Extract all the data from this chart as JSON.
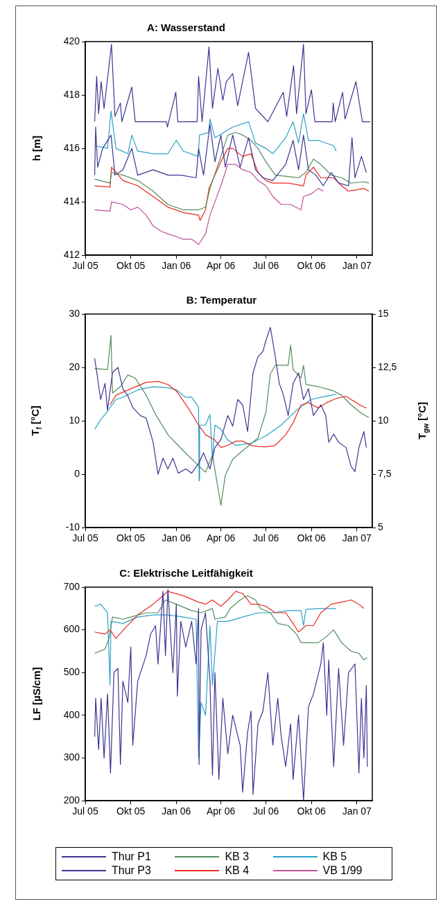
{
  "chart_data": [
    {
      "type": "line",
      "title": "A: Wasserstand",
      "ylabel": "h [m]",
      "xlim": [
        "2005-07-01",
        "2007-02-01"
      ],
      "xticks": [
        {
          "value": "2005-07-01",
          "label": "Jul 05"
        },
        {
          "value": "2005-10-01",
          "label": "Okt 05"
        },
        {
          "value": "2006-01-01",
          "label": "Jan 06"
        },
        {
          "value": "2006-04-01",
          "label": "Apr 06"
        },
        {
          "value": "2006-07-01",
          "label": "Jul 06"
        },
        {
          "value": "2006-10-01",
          "label": "Okt 06"
        },
        {
          "value": "2007-01-01",
          "label": "Jan 07"
        }
      ],
      "ylim": [
        412,
        420
      ],
      "yticks": [
        412,
        414,
        416,
        418,
        420
      ],
      "grid": false,
      "legend": "bottom",
      "marker": "none",
      "line_style": "solid",
      "series": [
        {
          "name": "Thur P1",
          "color": "#3a3492",
          "x": [
            "2005-07-20",
            "2005-07-24",
            "2005-07-28",
            "2005-08-02",
            "2005-08-08",
            "2005-08-23",
            "2005-08-30",
            "2005-09-10",
            "2005-09-13",
            "2005-10-03",
            "2005-10-10",
            "2005-12-12",
            "2005-12-14",
            "2005-12-31",
            "2006-01-04",
            "2006-02-12",
            "2006-02-15",
            "2006-02-22",
            "2006-03-08",
            "2006-03-15",
            "2006-03-26",
            "2006-04-05",
            "2006-04-12",
            "2006-04-25",
            "2006-05-05",
            "2006-05-27",
            "2006-06-10",
            "2006-06-20",
            "2006-07-05",
            "2006-08-05",
            "2006-08-12",
            "2006-08-26",
            "2006-09-01",
            "2006-09-15",
            "2006-09-20",
            "2006-10-01",
            "2006-10-08",
            "2006-11-12",
            "2006-11-14",
            "2006-11-18",
            "2006-12-03",
            "2006-12-08",
            "2006-12-30",
            "2007-01-05",
            "2007-01-12",
            "2007-01-28"
          ],
          "values": [
            417.0,
            418.7,
            417.3,
            418.5,
            417.5,
            419.9,
            417.2,
            417.7,
            417.0,
            418.3,
            417.0,
            417.0,
            416.8,
            418.1,
            417.0,
            417.0,
            418.7,
            417.0,
            419.8,
            417.5,
            419.0,
            417.8,
            418.5,
            418.8,
            417.6,
            419.6,
            417.5,
            417.3,
            417.0,
            418.1,
            417.2,
            419.1,
            417.3,
            419.9,
            417.3,
            418.2,
            417.0,
            417.0,
            417.7,
            417.0,
            418.1,
            417.1,
            418.5,
            417.8,
            417.0,
            417.0
          ]
        },
        {
          "name": "Thur P3",
          "color": "#3a3492",
          "x": [
            "2005-07-20",
            "2005-07-22",
            "2005-07-26",
            "2005-08-05",
            "2005-08-22",
            "2005-08-30",
            "2005-09-15",
            "2005-10-03",
            "2005-10-15",
            "2005-11-15",
            "2005-12-15",
            "2006-01-10",
            "2006-02-10",
            "2006-02-15",
            "2006-02-25",
            "2006-03-10",
            "2006-03-20",
            "2006-04-01",
            "2006-04-10",
            "2006-04-25",
            "2006-05-10",
            "2006-05-27",
            "2006-06-10",
            "2006-06-25",
            "2006-07-15",
            "2006-08-10",
            "2006-08-25",
            "2006-09-05",
            "2006-09-15",
            "2006-09-25",
            "2006-10-10",
            "2006-10-25",
            "2006-11-10",
            "2006-11-25",
            "2006-12-15",
            "2006-12-22",
            "2006-12-28",
            "2007-01-10",
            "2007-01-20"
          ],
          "values": [
            415.0,
            416.8,
            415.3,
            416.0,
            416.5,
            415.0,
            415.2,
            416.0,
            415.0,
            415.2,
            415.0,
            415.0,
            414.9,
            416.0,
            415.0,
            416.9,
            415.5,
            416.5,
            415.3,
            416.5,
            415.3,
            416.4,
            415.2,
            414.9,
            414.8,
            415.4,
            416.3,
            415.2,
            416.5,
            415.2,
            415.0,
            414.6,
            415.1,
            414.7,
            414.6,
            416.4,
            414.9,
            415.7,
            415.1
          ]
        },
        {
          "name": "KB 3",
          "color": "#4f8c5c",
          "x": [
            "2005-07-20",
            "2005-08-20",
            "2005-08-23",
            "2005-09-15",
            "2005-10-15",
            "2005-11-15",
            "2005-12-15",
            "2006-01-15",
            "2006-02-15",
            "2006-03-01",
            "2006-03-10",
            "2006-04-01",
            "2006-04-15",
            "2006-05-01",
            "2006-05-15",
            "2006-06-01",
            "2006-06-15",
            "2006-07-01",
            "2006-07-20",
            "2006-08-15",
            "2006-09-05",
            "2006-09-20",
            "2006-10-05",
            "2006-10-20",
            "2006-11-10",
            "2006-12-01",
            "2006-12-20",
            "2007-01-15",
            "2007-01-25"
          ],
          "values": [
            414.85,
            414.7,
            415.1,
            415.0,
            414.8,
            414.4,
            413.9,
            413.7,
            413.7,
            413.8,
            414.5,
            415.7,
            416.5,
            416.6,
            416.5,
            416.3,
            416.0,
            415.5,
            415.0,
            414.95,
            414.9,
            415.1,
            415.6,
            415.4,
            415.0,
            414.9,
            414.7,
            414.75,
            414.7
          ]
        },
        {
          "name": "KB 4",
          "color": "#e8281e",
          "x": [
            "2005-07-20",
            "2005-08-20",
            "2005-08-23",
            "2005-09-15",
            "2005-10-15",
            "2005-11-15",
            "2005-12-15",
            "2006-01-15",
            "2006-02-15",
            "2006-02-18",
            "2006-03-01",
            "2006-03-08",
            "2006-04-01",
            "2006-04-15",
            "2006-04-25",
            "2006-05-15",
            "2006-06-01",
            "2006-06-15",
            "2006-07-01",
            "2006-07-15",
            "2006-08-15",
            "2006-09-15",
            "2006-09-20",
            "2006-10-05",
            "2006-10-20",
            "2006-11-15",
            "2006-12-01",
            "2006-12-15",
            "2007-01-15",
            "2007-01-25"
          ],
          "values": [
            414.6,
            414.55,
            415.3,
            414.8,
            414.6,
            414.2,
            413.8,
            413.6,
            413.5,
            413.3,
            413.7,
            414.5,
            415.5,
            416.0,
            416.0,
            415.7,
            415.8,
            415.1,
            414.8,
            414.7,
            414.7,
            414.6,
            415.0,
            415.3,
            414.9,
            414.9,
            414.6,
            414.4,
            414.5,
            414.4
          ]
        },
        {
          "name": "KB 5",
          "color": "#2aa0c8",
          "x": [
            "2005-07-20",
            "2005-08-15",
            "2005-08-22",
            "2005-09-01",
            "2005-09-25",
            "2005-10-03",
            "2005-10-15",
            "2005-11-15",
            "2005-12-15",
            "2006-01-01",
            "2006-01-15",
            "2006-02-14",
            "2006-02-17",
            "2006-03-07",
            "2006-03-10",
            "2006-03-20",
            "2006-04-25",
            "2006-05-27",
            "2006-06-10",
            "2006-07-01",
            "2006-07-15",
            "2006-08-10",
            "2006-08-25",
            "2006-09-05",
            "2006-09-15",
            "2006-09-25",
            "2006-10-15",
            "2006-11-15",
            "2006-11-20"
          ],
          "values": [
            416.1,
            416.0,
            417.4,
            416.0,
            415.8,
            416.5,
            415.9,
            415.8,
            415.8,
            416.3,
            415.9,
            415.7,
            416.5,
            416.6,
            417.1,
            416.4,
            416.8,
            417.0,
            416.2,
            416.0,
            415.8,
            416.4,
            417.0,
            416.2,
            417.3,
            416.3,
            416.3,
            416.1,
            415.9
          ]
        },
        {
          "name": "VB 1/99",
          "color": "#c0509a",
          "x": [
            "2005-07-20",
            "2005-08-20",
            "2005-08-23",
            "2005-09-15",
            "2005-10-01",
            "2005-10-15",
            "2005-11-01",
            "2005-11-15",
            "2005-12-01",
            "2005-12-15",
            "2006-01-01",
            "2006-01-15",
            "2006-02-01",
            "2006-02-15",
            "2006-03-01",
            "2006-03-10",
            "2006-04-01",
            "2006-04-15",
            "2006-05-01",
            "2006-05-15",
            "2006-06-01",
            "2006-06-15",
            "2006-07-01",
            "2006-07-15",
            "2006-08-01",
            "2006-08-20",
            "2006-09-10",
            "2006-09-15",
            "2006-10-01",
            "2006-10-15",
            "2006-10-25"
          ],
          "values": [
            413.7,
            413.65,
            414.0,
            413.9,
            413.7,
            413.8,
            413.5,
            413.1,
            412.9,
            412.8,
            412.7,
            412.6,
            412.6,
            412.4,
            412.8,
            413.5,
            414.6,
            415.4,
            415.4,
            415.2,
            415.1,
            414.8,
            414.6,
            414.2,
            413.9,
            413.9,
            413.7,
            414.2,
            414.3,
            414.5,
            414.4
          ]
        }
      ]
    },
    {
      "type": "line",
      "title": "B: Temperatur",
      "ylabel": "T$_{f}$ [°C]",
      "y2label": "T$_{gw}$ [°C]",
      "xlim": [
        "2005-07-01",
        "2007-02-01"
      ],
      "xticks": [
        {
          "value": "2005-07-01",
          "label": "Jul 05"
        },
        {
          "value": "2005-10-01",
          "label": "Okt 05"
        },
        {
          "value": "2006-01-01",
          "label": "Jan 06"
        },
        {
          "value": "2006-04-01",
          "label": "Apr 06"
        },
        {
          "value": "2006-07-01",
          "label": "Jul 06"
        },
        {
          "value": "2006-10-01",
          "label": "Okt 06"
        },
        {
          "value": "2007-01-01",
          "label": "Jan 07"
        }
      ],
      "ylim": [
        -10,
        30
      ],
      "yticks": [
        -10,
        0,
        10,
        20,
        30
      ],
      "y2lim": [
        5,
        15
      ],
      "y2ticks": [
        5,
        {
          "value": 7.5,
          "label": "7,5"
        },
        10,
        {
          "value": 12.5,
          "label": "12,5"
        },
        15
      ],
      "grid": false,
      "legend": "bottom",
      "marker": "none",
      "line_style": "solid",
      "series": [
        {
          "name": "Thur P1",
          "color": "#3a3492",
          "x": [
            "2005-07-20",
            "2005-07-25",
            "2005-08-01",
            "2005-08-10",
            "2005-08-15",
            "2005-08-25",
            "2005-09-05",
            "2005-09-15",
            "2005-09-25",
            "2005-10-05",
            "2005-10-20",
            "2005-11-01",
            "2005-11-15",
            "2005-11-25",
            "2005-12-05",
            "2005-12-15",
            "2005-12-25",
            "2006-01-05",
            "2006-01-20",
            "2006-02-01",
            "2006-02-15",
            "2006-02-25",
            "2006-03-10",
            "2006-03-20",
            "2006-04-01",
            "2006-04-15",
            "2006-04-25",
            "2006-05-05",
            "2006-05-15",
            "2006-05-25",
            "2006-06-05",
            "2006-06-15",
            "2006-06-25",
            "2006-07-01",
            "2006-07-10",
            "2006-07-20",
            "2006-07-28",
            "2006-08-05",
            "2006-08-15",
            "2006-08-25",
            "2006-09-05",
            "2006-09-15",
            "2006-09-25",
            "2006-10-05",
            "2006-10-20",
            "2006-10-30",
            "2006-11-05",
            "2006-11-15",
            "2006-11-25",
            "2006-12-10",
            "2006-12-20",
            "2006-12-28",
            "2007-01-05",
            "2007-01-15",
            "2007-01-20"
          ],
          "values": [
            21.7,
            18.6,
            14,
            17,
            12,
            19,
            20,
            16,
            14.7,
            12.5,
            11,
            10.5,
            6,
            0,
            3,
            1,
            3,
            0.2,
            1,
            0.2,
            2,
            4,
            1,
            5,
            6.5,
            11,
            9,
            14,
            13,
            8,
            19,
            22,
            23,
            25,
            27.5,
            22,
            17,
            15,
            11,
            17,
            19,
            14,
            16,
            11,
            13,
            11,
            6,
            7.5,
            6,
            5,
            1.5,
            0.5,
            5,
            8,
            5
          ]
        },
        {
          "name": "KB 3",
          "color": "#4f8c5c",
          "axis": "y2",
          "x": [
            "2005-07-20",
            "2005-08-15",
            "2005-08-22",
            "2005-08-25",
            "2005-09-10",
            "2005-09-25",
            "2005-10-10",
            "2005-11-01",
            "2005-11-20",
            "2005-12-15",
            "2006-01-15",
            "2006-02-15",
            "2006-03-01",
            "2006-03-15",
            "2006-04-01",
            "2006-04-10",
            "2006-04-25",
            "2006-05-15",
            "2006-06-15",
            "2006-07-01",
            "2006-07-10",
            "2006-07-20",
            "2006-08-15",
            "2006-08-20",
            "2006-08-25",
            "2006-09-10",
            "2006-09-15",
            "2006-09-20",
            "2006-10-15",
            "2006-11-15",
            "2006-12-01",
            "2006-12-20",
            "2007-01-10",
            "2007-01-25"
          ],
          "values": [
            12.45,
            12.4,
            14.0,
            11.3,
            11.6,
            12.15,
            12.0,
            11.2,
            10.3,
            9.35,
            8.6,
            7.9,
            7.6,
            8.4,
            6.05,
            7.45,
            8.2,
            8.6,
            9.2,
            10.4,
            12.2,
            12.6,
            12.6,
            13.55,
            12.4,
            12.0,
            12.6,
            11.7,
            11.6,
            11.4,
            11.2,
            10.75,
            10.35,
            10.15
          ]
        },
        {
          "name": "KB 4",
          "color": "#e8281e",
          "axis": "y2",
          "x": [
            "2005-08-20",
            "2005-09-01",
            "2005-10-01",
            "2005-11-01",
            "2005-11-25",
            "2005-12-15",
            "2006-01-01",
            "2006-01-25",
            "2006-02-15",
            "2006-03-01",
            "2006-03-20",
            "2006-04-01",
            "2006-04-15",
            "2006-05-01",
            "2006-05-15",
            "2006-06-01",
            "2006-06-15",
            "2006-07-01",
            "2006-07-20",
            "2006-08-10",
            "2006-08-25",
            "2006-09-10",
            "2006-09-25",
            "2006-10-15",
            "2006-11-01",
            "2006-11-20",
            "2006-12-10",
            "2006-12-20",
            "2007-01-10",
            "2007-01-20"
          ],
          "values": [
            10.75,
            11.2,
            11.5,
            11.8,
            11.85,
            11.7,
            11.4,
            10.6,
            9.8,
            9.35,
            9.1,
            8.75,
            8.85,
            9.05,
            9.05,
            8.85,
            8.8,
            8.78,
            8.85,
            9.35,
            9.9,
            10.75,
            10.85,
            10.6,
            10.85,
            11.05,
            11.15,
            11.0,
            10.7,
            10.6
          ]
        },
        {
          "name": "KB 5",
          "color": "#2aa0c8",
          "axis": "y2",
          "x": [
            "2005-07-20",
            "2005-08-01",
            "2005-08-15",
            "2005-09-01",
            "2005-09-15",
            "2005-10-15",
            "2005-11-15",
            "2005-12-15",
            "2006-01-01",
            "2006-01-20",
            "2006-02-01",
            "2006-02-15",
            "2006-02-16",
            "2006-02-17",
            "2006-03-01",
            "2006-03-10",
            "2006-03-15",
            "2006-03-20",
            "2006-04-01",
            "2006-04-15",
            "2006-05-01",
            "2006-06-01",
            "2006-07-01",
            "2006-08-01",
            "2006-09-01",
            "2006-10-01",
            "2006-10-20",
            "2006-11-10",
            "2006-11-20"
          ],
          "values": [
            9.6,
            10.05,
            10.45,
            11.0,
            11.1,
            11.45,
            11.6,
            11.55,
            11.45,
            11.1,
            11.1,
            10.65,
            7.2,
            9.8,
            9.8,
            10.3,
            8.2,
            9.8,
            9.6,
            9.1,
            8.85,
            8.95,
            9.3,
            9.8,
            10.5,
            11.0,
            11.1,
            11.2,
            11.25
          ]
        }
      ]
    },
    {
      "type": "line",
      "title": "C: Elektrische Leitfähigkeit",
      "ylabel": "LF [µS/cm]",
      "xlim": [
        "2005-07-01",
        "2007-02-01"
      ],
      "xticks": [
        {
          "value": "2005-07-01",
          "label": "Jul 05"
        },
        {
          "value": "2005-10-01",
          "label": "Okt 05"
        },
        {
          "value": "2006-01-01",
          "label": "Jan 06"
        },
        {
          "value": "2006-04-01",
          "label": "Apr 06"
        },
        {
          "value": "2006-07-01",
          "label": "Jul 06"
        },
        {
          "value": "2006-10-01",
          "label": "Okt 06"
        },
        {
          "value": "2007-01-01",
          "label": "Jan 07"
        }
      ],
      "ylim": [
        200,
        700
      ],
      "yticks": [
        200,
        300,
        400,
        500,
        600,
        700
      ],
      "grid": false,
      "legend": "bottom",
      "marker": "none",
      "line_style": "solid",
      "series": [
        {
          "name": "Thur P1",
          "color": "#3a3492",
          "x": [
            "2005-07-20",
            "2005-07-22",
            "2005-07-28",
            "2005-08-02",
            "2005-08-08",
            "2005-08-15",
            "2005-08-21",
            "2005-08-28",
            "2005-09-05",
            "2005-09-10",
            "2005-09-15",
            "2005-09-25",
            "2005-10-01",
            "2005-10-05",
            "2005-10-15",
            "2005-11-01",
            "2005-11-10",
            "2005-11-20",
            "2005-11-25",
            "2005-12-05",
            "2005-12-10",
            "2005-12-15",
            "2005-12-25",
            "2006-01-01",
            "2006-01-03",
            "2006-01-10",
            "2006-01-20",
            "2006-02-01",
            "2006-02-10",
            "2006-02-15",
            "2006-02-16",
            "2006-02-20",
            "2006-03-01",
            "2006-03-10",
            "2006-03-15",
            "2006-03-20",
            "2006-03-28",
            "2006-04-05",
            "2006-04-15",
            "2006-04-25",
            "2006-05-10",
            "2006-05-15",
            "2006-05-25",
            "2006-06-01",
            "2006-06-05",
            "2006-06-15",
            "2006-06-25",
            "2006-07-05",
            "2006-07-15",
            "2006-07-25",
            "2006-08-01",
            "2006-08-10",
            "2006-08-20",
            "2006-08-25",
            "2006-09-05",
            "2006-09-15",
            "2006-09-25",
            "2006-10-05",
            "2006-10-20",
            "2006-10-25",
            "2006-11-01",
            "2006-11-05",
            "2006-11-15",
            "2006-11-25",
            "2006-12-05",
            "2006-12-15",
            "2006-12-28",
            "2007-01-05",
            "2007-01-10",
            "2007-01-15",
            "2007-01-20",
            "2007-01-22"
          ],
          "values": [
            350,
            440,
            320,
            440,
            300,
            450,
            265,
            500,
            510,
            285,
            480,
            430,
            560,
            330,
            480,
            540,
            590,
            610,
            520,
            690,
            540,
            695,
            500,
            660,
            445,
            620,
            560,
            620,
            520,
            650,
            285,
            600,
            640,
            480,
            260,
            500,
            250,
            440,
            310,
            400,
            330,
            220,
            360,
            410,
            215,
            380,
            410,
            500,
            330,
            440,
            350,
            280,
            380,
            250,
            400,
            200,
            420,
            450,
            520,
            570,
            400,
            530,
            280,
            510,
            330,
            500,
            520,
            265,
            440,
            300,
            470,
            280
          ]
        },
        {
          "name": "KB 3",
          "color": "#4f8c5c",
          "x": [
            "2005-07-20",
            "2005-08-10",
            "2005-08-18",
            "2005-08-25",
            "2005-09-15",
            "2005-10-01",
            "2005-11-01",
            "2005-11-25",
            "2005-12-10",
            "2006-01-01",
            "2006-02-01",
            "2006-02-20",
            "2006-03-15",
            "2006-03-20",
            "2006-04-10",
            "2006-04-20",
            "2006-05-10",
            "2006-05-25",
            "2006-06-10",
            "2006-06-20",
            "2006-07-10",
            "2006-07-25",
            "2006-08-15",
            "2006-09-01",
            "2006-09-10",
            "2006-10-01",
            "2006-10-15",
            "2006-11-01",
            "2006-11-15",
            "2006-12-01",
            "2006-12-20",
            "2007-01-05",
            "2007-01-15",
            "2007-01-22"
          ],
          "values": [
            545,
            555,
            580,
            630,
            625,
            630,
            640,
            640,
            670,
            660,
            645,
            640,
            650,
            625,
            630,
            650,
            670,
            680,
            670,
            650,
            640,
            615,
            610,
            590,
            570,
            570,
            570,
            585,
            600,
            570,
            550,
            545,
            530,
            535
          ]
        },
        {
          "name": "KB 4",
          "color": "#e8281e",
          "x": [
            "2005-07-20",
            "2005-08-10",
            "2005-08-20",
            "2005-09-01",
            "2005-09-20",
            "2005-10-15",
            "2005-11-15",
            "2005-12-05",
            "2005-12-15",
            "2006-01-15",
            "2006-02-15",
            "2006-03-01",
            "2006-03-15",
            "2006-04-01",
            "2006-04-15",
            "2006-05-01",
            "2006-05-15",
            "2006-06-01",
            "2006-06-15",
            "2006-07-01",
            "2006-07-20",
            "2006-08-10",
            "2006-08-25",
            "2006-09-05",
            "2006-09-20",
            "2006-10-05",
            "2006-10-20",
            "2006-11-10",
            "2006-12-01",
            "2006-12-20",
            "2007-01-05",
            "2007-01-15"
          ],
          "values": [
            595,
            590,
            600,
            580,
            605,
            635,
            660,
            680,
            690,
            680,
            665,
            660,
            670,
            655,
            670,
            690,
            685,
            660,
            660,
            655,
            640,
            640,
            615,
            595,
            610,
            610,
            640,
            660,
            665,
            670,
            660,
            650
          ]
        },
        {
          "name": "KB 5",
          "color": "#2aa0c8",
          "x": [
            "2005-07-20",
            "2005-08-01",
            "2005-08-15",
            "2005-08-20",
            "2005-08-22",
            "2005-09-15",
            "2005-10-15",
            "2005-11-15",
            "2005-12-15",
            "2006-01-15",
            "2006-02-10",
            "2006-02-15",
            "2006-02-20",
            "2006-03-01",
            "2006-03-10",
            "2006-03-15",
            "2006-03-25",
            "2006-04-15",
            "2006-05-15",
            "2006-06-15",
            "2006-07-15",
            "2006-08-15",
            "2006-09-10",
            "2006-09-15",
            "2006-09-20",
            "2006-10-15",
            "2006-11-20"
          ],
          "values": [
            655,
            660,
            640,
            470,
            620,
            615,
            630,
            635,
            635,
            630,
            625,
            300,
            430,
            400,
            610,
            470,
            620,
            620,
            630,
            640,
            640,
            645,
            645,
            610,
            648,
            650,
            650
          ]
        }
      ]
    }
  ]
}
